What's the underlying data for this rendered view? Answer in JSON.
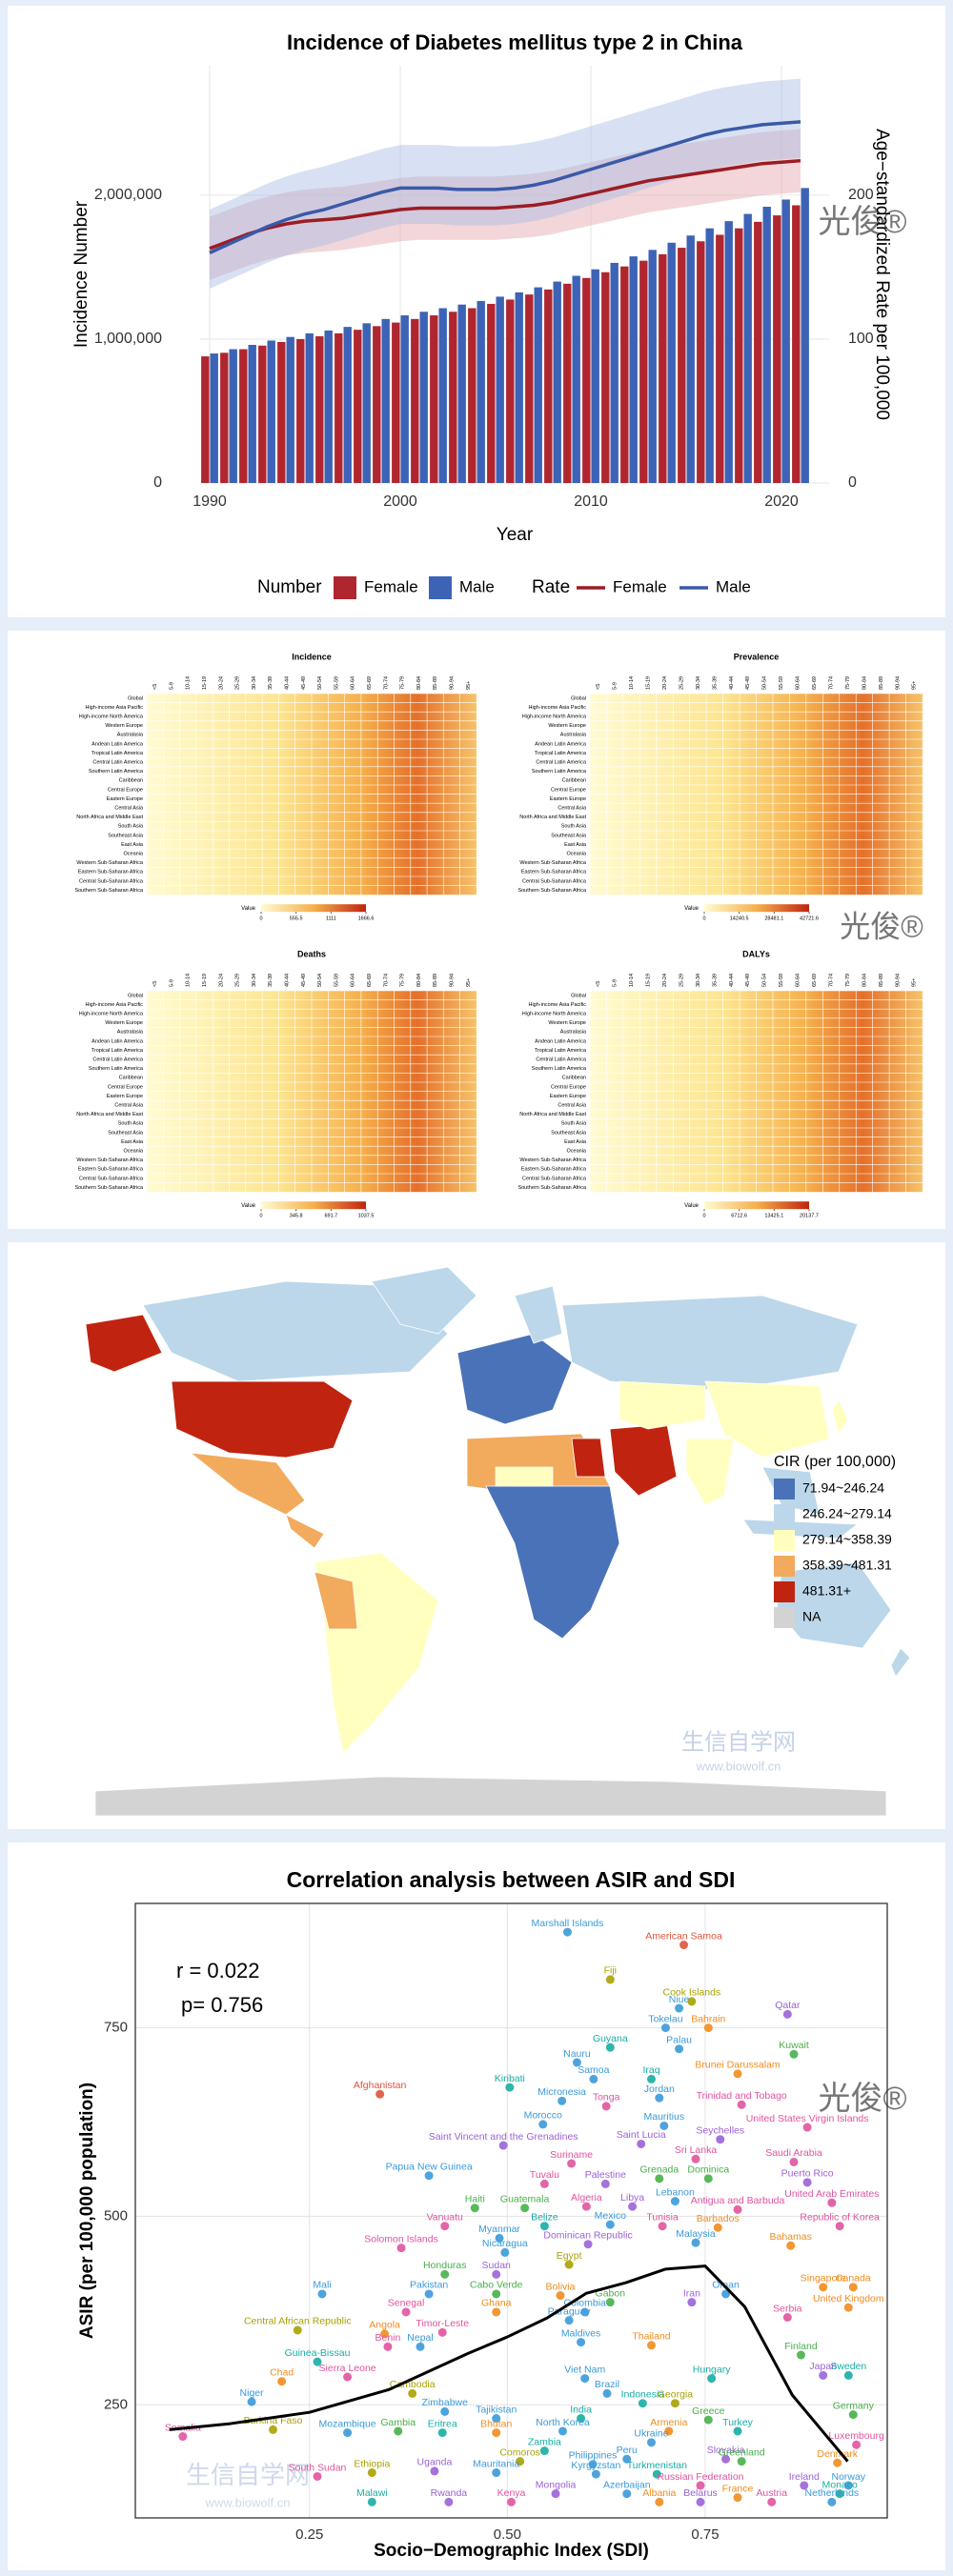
{
  "chart_data": [
    {
      "type": "bar_line",
      "title": "Incidence of Diabetes mellitus type 2 in China",
      "x_label": "Year",
      "y_label": "Incidence Number",
      "y2_label": "Age−standardized Rate per 100,000",
      "x": [
        1990,
        1991,
        1992,
        1993,
        1994,
        1995,
        1996,
        1997,
        1998,
        1999,
        2000,
        2001,
        2002,
        2003,
        2004,
        2005,
        2006,
        2007,
        2008,
        2009,
        2010,
        2011,
        2012,
        2013,
        2014,
        2015,
        2016,
        2017,
        2018,
        2019,
        2020,
        2021
      ],
      "xlim": [
        1989.5,
        2022.5
      ],
      "xticks": [
        1990,
        2000,
        2010,
        2020
      ],
      "ylim": [
        0,
        2900000
      ],
      "yticks": [
        0,
        {
          "value": 1000000,
          "label": "1,000,000"
        },
        {
          "value": 2000000,
          "label": "2,000,000"
        }
      ],
      "y2lim": [
        0,
        290
      ],
      "y2ticks": [
        0,
        100,
        200
      ],
      "grid": true,
      "legend_titles": {
        "bars": "Number",
        "lines": "Rate"
      },
      "bar_series": [
        {
          "name": "Female",
          "color": "#b0262f",
          "values": [
            880000,
            905000,
            930000,
            955000,
            980000,
            1000000,
            1020000,
            1040000,
            1065000,
            1090000,
            1115000,
            1140000,
            1165000,
            1190000,
            1215000,
            1245000,
            1275000,
            1310000,
            1345000,
            1385000,
            1425000,
            1465000,
            1505000,
            1545000,
            1590000,
            1635000,
            1680000,
            1725000,
            1770000,
            1815000,
            1860000,
            1930000
          ]
        },
        {
          "name": "Male",
          "color": "#3c63b6",
          "values": [
            900000,
            930000,
            960000,
            990000,
            1015000,
            1040000,
            1060000,
            1085000,
            1110000,
            1140000,
            1165000,
            1190000,
            1215000,
            1240000,
            1265000,
            1295000,
            1325000,
            1360000,
            1400000,
            1440000,
            1485000,
            1530000,
            1575000,
            1620000,
            1670000,
            1720000,
            1770000,
            1820000,
            1870000,
            1920000,
            1970000,
            2050000
          ]
        }
      ],
      "line_series": [
        {
          "name": "Female",
          "color": "#9c1c24",
          "band_color": "#e2a3ab",
          "axis": "y2",
          "values": [
            163,
            168,
            173,
            177,
            180,
            182,
            183,
            184,
            186,
            188,
            190,
            191,
            191,
            191,
            191,
            191,
            192,
            193,
            195,
            198,
            201,
            204,
            207,
            210,
            212,
            214,
            216,
            218,
            220,
            222,
            223,
            224
          ],
          "lower": [
            141,
            146,
            151,
            155,
            158,
            160,
            161,
            162,
            164,
            166,
            168,
            169,
            169,
            169,
            169,
            169,
            170,
            171,
            173,
            176,
            179,
            182,
            185,
            188,
            190,
            192,
            194,
            196,
            198,
            200,
            201,
            202
          ],
          "upper": [
            185,
            190,
            195,
            199,
            202,
            204,
            205,
            206,
            208,
            210,
            212,
            213,
            213,
            213,
            213,
            213,
            214,
            215,
            217,
            220,
            223,
            226,
            229,
            232,
            234,
            236,
            238,
            240,
            242,
            244,
            245,
            246
          ]
        },
        {
          "name": "Male",
          "color": "#3a5aa8",
          "band_color": "#a8bde4",
          "axis": "y2",
          "values": [
            160,
            166,
            172,
            178,
            183,
            187,
            190,
            194,
            198,
            202,
            205,
            205,
            205,
            204,
            204,
            204,
            205,
            207,
            210,
            214,
            218,
            222,
            226,
            230,
            234,
            238,
            242,
            245,
            247,
            249,
            250,
            251
          ],
          "lower": [
            135,
            141,
            147,
            153,
            158,
            162,
            165,
            169,
            173,
            177,
            180,
            180,
            180,
            179,
            179,
            179,
            180,
            182,
            185,
            189,
            193,
            197,
            201,
            205,
            209,
            213,
            217,
            220,
            222,
            224,
            225,
            226
          ],
          "upper": [
            190,
            196,
            202,
            208,
            213,
            217,
            220,
            224,
            228,
            232,
            235,
            235,
            235,
            234,
            234,
            234,
            235,
            237,
            240,
            244,
            248,
            252,
            256,
            260,
            264,
            268,
            272,
            275,
            277,
            279,
            280,
            281
          ]
        }
      ]
    },
    {
      "type": "heatmap",
      "title": "Incidence",
      "legend_title": "Value",
      "legend_ticks": [
        0,
        555.5,
        1111,
        1666.6
      ]
    },
    {
      "type": "heatmap",
      "title": "Prevalence",
      "legend_title": "Value",
      "legend_ticks": [
        0,
        14240.5,
        28481.1,
        42721.6
      ]
    },
    {
      "type": "heatmap",
      "title": "Deaths",
      "legend_title": "Value",
      "legend_ticks": [
        0,
        345.8,
        691.7,
        1037.5
      ]
    },
    {
      "type": "heatmap",
      "title": "DALYs",
      "legend_title": "Value",
      "legend_ticks": [
        0,
        6712.6,
        13425.1,
        20137.7
      ]
    },
    {
      "type": "map",
      "legend_title": "CIR (per 100,000)",
      "legend": [
        {
          "label": "71.94~246.24",
          "color": "#4a72b8"
        },
        {
          "label": "246.24~279.14",
          "color": "#bcd7ea"
        },
        {
          "label": "279.14~358.39",
          "color": "#ffffbf"
        },
        {
          "label": "358.39~481.31",
          "color": "#f2aa5c"
        },
        {
          "label": "481.31+",
          "color": "#c0230f"
        },
        {
          "label": "NA",
          "color": "#d3d3d3"
        }
      ]
    },
    {
      "type": "scatter",
      "title": "Correlation analysis between ASIR and SDI",
      "x_label": "Socio−Demographic Index (SDI)",
      "y_label": "ASIR (per 100,000 population)",
      "annotations": [
        "r = 0.022",
        "p= 0.756"
      ],
      "xlim": [
        0.03,
        0.98
      ],
      "xticks": [
        0.25,
        {
          "value": 0.5,
          "label": "0.50"
        },
        0.75
      ],
      "ylim": [
        100,
        915
      ],
      "yticks": [
        250,
        500,
        750
      ],
      "grid": true,
      "trend": {
        "color": "#000000",
        "x": [
          0.073,
          0.15,
          0.25,
          0.35,
          0.45,
          0.5,
          0.55,
          0.6,
          0.65,
          0.7,
          0.75,
          0.8,
          0.86,
          0.93
        ],
        "y": [
          217,
          225,
          240,
          270,
          318,
          340,
          365,
          398,
          412,
          430,
          434,
          380,
          263,
          175
        ]
      },
      "labels": [
        "Marshall Islands",
        "American Samoa",
        "Fiji",
        "Cook Islands",
        "Niue",
        "Qatar",
        "Bahrain",
        "Tokelau",
        "Guyana",
        "Kuwait",
        "Palau",
        "Nauru",
        "Samoa",
        "Iraq",
        "Kiribati",
        "Brunei Darussalam",
        "Afghanistan",
        "Micronesia",
        "Jordan",
        "Tonga",
        "Trinidad and Tobago",
        "Morocco",
        "Mauritius",
        "United States Virgin Islands",
        "Saint Vincent and the Grenadines",
        "Saint Lucia",
        "Seychelles",
        "Sri Lanka",
        "Saudi Arabia",
        "Suriname",
        "Papua New Guinea",
        "Tuvalu",
        "Palestine",
        "Grenada",
        "Dominica",
        "Puerto Rico",
        "Haiti",
        "Guatemala",
        "Algeria",
        "Libya",
        "Lebanon",
        "Antigua and Barbuda",
        "United Arab Emirates",
        "Vanuatu",
        "Belize",
        "Mexico",
        "Tunisia",
        "Barbados",
        "Republic of Korea",
        "Myanmar",
        "Dominican Republic",
        "Malaysia",
        "Solomon Islands",
        "Bahamas",
        "Nicaragua",
        "Egypt",
        "Honduras",
        "Sudan",
        "Mali",
        "Pakistan",
        "Cabo Verde",
        "Oman",
        "Bolivia",
        "Singapore",
        "Canada",
        "Gabon",
        "Iran",
        "United Kingdom",
        "Senegal",
        "Ghana",
        "Colombia",
        "Serbia",
        "Paraguay",
        "Central African Republic",
        "Timor-Leste",
        "Angola",
        "Maldives",
        "Thailand",
        "Benin",
        "Nepal",
        "Finland",
        "Guinea-Bissau",
        "Sierra Leone",
        "Viet Nam",
        "Hungary",
        "Japan",
        "Sweden",
        "Chad",
        "Cambodia",
        "Brazil",
        "Niger",
        "Indonesia",
        "Georgia",
        "Zimbabwe",
        "Germany",
        "India",
        "Tajikistan",
        "Greece",
        "Burkina Faso",
        "Gambia",
        "North Korea",
        "Armenia",
        "Turkey",
        "Mozambique",
        "Eritrea",
        "Bhutan",
        "Somalia",
        "Ukraine",
        "Luxembourg",
        "Zambia",
        "Peru",
        "Slovakia",
        "Comoros",
        "Greenland",
        "Denmark",
        "Philippines",
        "Ethiopia",
        "Uganda",
        "Mauritania",
        "Kyrgyzstan",
        "Turkmenistan",
        "South Sudan",
        "Russian Federation",
        "Ireland",
        "Norway",
        "Mongolia",
        "Azerbaijan",
        "Monaco",
        "France",
        "Malawi",
        "Rwanda",
        "Kenya",
        "Albania",
        "Belarus",
        "Austria",
        "Netherlands"
      ],
      "x": [
        0.576,
        0.723,
        0.63,
        0.733,
        0.717,
        0.854,
        0.754,
        0.7,
        0.63,
        0.862,
        0.717,
        0.588,
        0.609,
        0.682,
        0.503,
        0.791,
        0.339,
        0.569,
        0.692,
        0.625,
        0.796,
        0.545,
        0.698,
        0.879,
        0.495,
        0.669,
        0.769,
        0.738,
        0.862,
        0.581,
        0.401,
        0.547,
        0.624,
        0.692,
        0.754,
        0.879,
        0.459,
        0.522,
        0.6,
        0.658,
        0.712,
        0.791,
        0.91,
        0.421,
        0.547,
        0.63,
        0.696,
        0.766,
        0.92,
        0.49,
        0.602,
        0.738,
        0.366,
        0.858,
        0.497,
        0.578,
        0.421,
        0.486,
        0.266,
        0.401,
        0.486,
        0.776,
        0.567,
        0.899,
        0.937,
        0.63,
        0.733,
        0.931,
        0.372,
        0.486,
        0.598,
        0.854,
        0.578,
        0.235,
        0.418,
        0.345,
        0.593,
        0.682,
        0.349,
        0.39,
        0.871,
        0.26,
        0.298,
        0.598,
        0.758,
        0.899,
        0.931,
        0.215,
        0.38,
        0.626,
        0.177,
        0.671,
        0.712,
        0.421,
        0.937,
        0.593,
        0.486,
        0.754,
        0.204,
        0.362,
        0.57,
        0.704,
        0.791,
        0.298,
        0.418,
        0.486,
        0.09,
        0.682,
        0.941,
        0.547,
        0.651,
        0.776,
        0.516,
        0.796,
        0.917,
        0.608,
        0.329,
        0.408,
        0.486,
        0.612,
        0.689,
        0.26,
        0.744,
        0.875,
        0.931,
        0.561,
        0.651,
        0.92,
        0.791,
        0.329,
        0.426,
        0.505,
        0.692,
        0.744,
        0.834,
        0.91
      ],
      "y": [
        877,
        860,
        814,
        785,
        776,
        768,
        750,
        750,
        724,
        715,
        722,
        704,
        682,
        682,
        671,
        689,
        662,
        653,
        657,
        646,
        648,
        622,
        620,
        618,
        594,
        596,
        602,
        576,
        572,
        570,
        554,
        543,
        543,
        550,
        550,
        545,
        511,
        511,
        513,
        513,
        520,
        509,
        518,
        487,
        487,
        489,
        487,
        485,
        487,
        471,
        463,
        465,
        458,
        461,
        452,
        436,
        423,
        423,
        397,
        397,
        397,
        397,
        395,
        406,
        406,
        386,
        386,
        379,
        373,
        373,
        373,
        366,
        362,
        349,
        346,
        344,
        333,
        329,
        327,
        327,
        316,
        307,
        287,
        285,
        285,
        289,
        289,
        281,
        265,
        265,
        254,
        252,
        252,
        241,
        237,
        232,
        232,
        230,
        217,
        215,
        215,
        215,
        215,
        213,
        213,
        213,
        208,
        200,
        197,
        189,
        178,
        178,
        175,
        175,
        173,
        171,
        160,
        162,
        160,
        158,
        158,
        155,
        143,
        143,
        143,
        132,
        132,
        132,
        127,
        121,
        121,
        121,
        121,
        121,
        121,
        121
      ],
      "colors": [
        "#3a9ad9",
        "#e0533b",
        "#a9a200",
        "#a9a200",
        "#3a9ad9",
        "#9b62d6",
        "#f08c1e",
        "#3a9ad9",
        "#17ada5",
        "#47b04a",
        "#3a9ad9",
        "#3a9ad9",
        "#3a9ad9",
        "#17ada5",
        "#17ada5",
        "#f08c1e",
        "#e0533b",
        "#3a9ad9",
        "#3a9ad9",
        "#e0539f",
        "#e0539f",
        "#3a9ad9",
        "#3a9ad9",
        "#e0539f",
        "#9b62d6",
        "#9b62d6",
        "#9b62d6",
        "#e0539f",
        "#e0539f",
        "#e0539f",
        "#3a9ad9",
        "#e0539f",
        "#9b62d6",
        "#47b04a",
        "#47b04a",
        "#9b62d6",
        "#47b04a",
        "#47b04a",
        "#e0539f",
        "#9b62d6",
        "#3a9ad9",
        "#e0539f",
        "#e0539f",
        "#e0539f",
        "#17ada5",
        "#3a9ad9",
        "#e0539f",
        "#f08c1e",
        "#e0539f",
        "#3a9ad9",
        "#9b62d6",
        "#3a9ad9",
        "#e0539f",
        "#f08c1e",
        "#3a9ad9",
        "#a9a200",
        "#47b04a",
        "#9b62d6",
        "#3a9ad9",
        "#3a9ad9",
        "#47b04a",
        "#3a9ad9",
        "#f08c1e",
        "#f08c1e",
        "#f08c1e",
        "#47b04a",
        "#9b62d6",
        "#f08c1e",
        "#e0539f",
        "#f08c1e",
        "#3a9ad9",
        "#e0539f",
        "#3a9ad9",
        "#a9a200",
        "#e0539f",
        "#f08c1e",
        "#3a9ad9",
        "#f08c1e",
        "#e0539f",
        "#3a9ad9",
        "#47b04a",
        "#17ada5",
        "#e0539f",
        "#3a9ad9",
        "#17ada5",
        "#9b62d6",
        "#17ada5",
        "#f08c1e",
        "#a9a200",
        "#3a9ad9",
        "#3a9ad9",
        "#17ada5",
        "#a9a200",
        "#3a9ad9",
        "#47b04a",
        "#17ada5",
        "#3a9ad9",
        "#47b04a",
        "#a9a200",
        "#47b04a",
        "#3a9ad9",
        "#f08c1e",
        "#17ada5",
        "#3a9ad9",
        "#17ada5",
        "#f08c1e",
        "#e0539f",
        "#3a9ad9",
        "#e0539f",
        "#17ada5",
        "#3a9ad9",
        "#9b62d6",
        "#a9a200",
        "#47b04a",
        "#f08c1e",
        "#3a9ad9",
        "#a9a200",
        "#9b62d6",
        "#3a9ad9",
        "#3a9ad9",
        "#17ada5",
        "#e0539f",
        "#e0539f",
        "#9b62d6",
        "#3a9ad9",
        "#9b62d6",
        "#3a9ad9",
        "#17ada5",
        "#f08c1e",
        "#17ada5",
        "#9b62d6",
        "#e0539f",
        "#f08c1e",
        "#9b62d6",
        "#e0539f",
        "#3a9ad9"
      ]
    }
  ],
  "heatmap_axes": {
    "rows": [
      "Global",
      "High-income Asia Pacific",
      "High-income North America",
      "Western Europe",
      "Australasia",
      "Andean Latin America",
      "Tropical Latin America",
      "Central Latin America",
      "Southern Latin America",
      "Caribbean",
      "Central Europe",
      "Eastern Europe",
      "Central Asia",
      "North Africa and Middle East",
      "South Asia",
      "Southeast Asia",
      "East Asia",
      "Oceania",
      "Western Sub-Saharan Africa",
      "Eastern Sub-Saharan Africa",
      "Central Sub-Saharan Africa",
      "Southern Sub-Saharan Africa"
    ],
    "columns": [
      "<5",
      "5-9",
      "10-14",
      "15-19",
      "20-24",
      "25-29",
      "30-34",
      "35-39",
      "40-44",
      "45-49",
      "50-54",
      "55-59",
      "60-64",
      "65-69",
      "70-74",
      "75-79",
      "80-84",
      "85-89",
      "90-94",
      "95+"
    ]
  },
  "watermarks": [
    "光俊®",
    "生信自学网",
    "www.biowolf.cn"
  ]
}
